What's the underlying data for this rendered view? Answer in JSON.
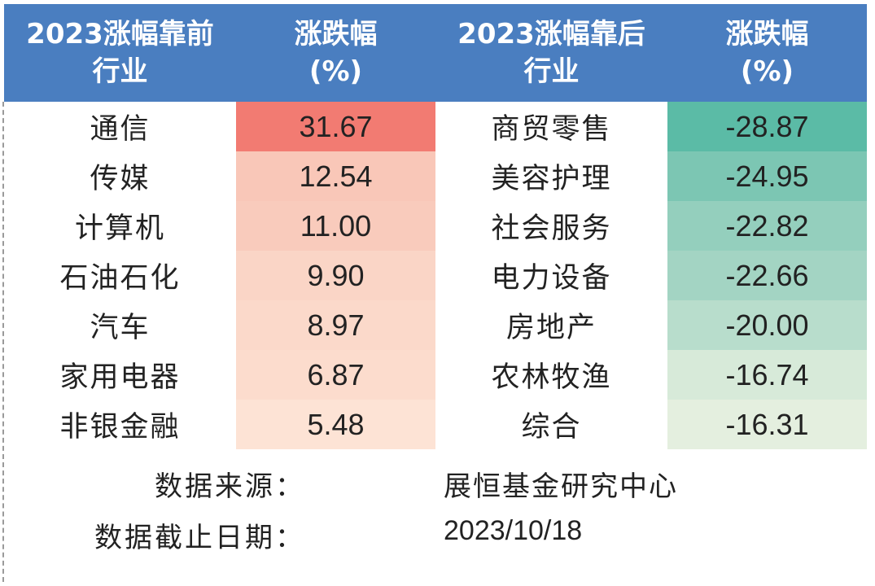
{
  "table": {
    "headers": {
      "top_industry": [
        "2023涨幅靠前",
        "行业"
      ],
      "top_change": [
        "涨跌幅",
        "(%)"
      ],
      "bottom_industry": [
        "2023涨幅靠后",
        "行业"
      ],
      "bottom_change": [
        "涨跌幅",
        "(%)"
      ]
    },
    "rows": [
      {
        "top_name": "通信",
        "top_value": "31.67",
        "bottom_name": "商贸零售",
        "bottom_value": "-28.87"
      },
      {
        "top_name": "传媒",
        "top_value": "12.54",
        "bottom_name": "美容护理",
        "bottom_value": "-24.95"
      },
      {
        "top_name": "计算机",
        "top_value": "11.00",
        "bottom_name": "社会服务",
        "bottom_value": "-22.82"
      },
      {
        "top_name": "石油石化",
        "top_value": "9.90",
        "bottom_name": "电力设备",
        "bottom_value": "-22.66"
      },
      {
        "top_name": "汽车",
        "top_value": "8.97",
        "bottom_name": "房地产",
        "bottom_value": "-20.00"
      },
      {
        "top_name": "家用电器",
        "top_value": "6.87",
        "bottom_name": "农林牧渔",
        "bottom_value": "-16.74"
      },
      {
        "top_name": "非银金融",
        "top_value": "5.48",
        "bottom_name": "综合",
        "bottom_value": "-16.31"
      }
    ],
    "top_value_colors": [
      "#f27b72",
      "#f9c7b8",
      "#f9cbbc",
      "#fad5c6",
      "#fbd9ca",
      "#fcdccd",
      "#fde3d5"
    ],
    "bottom_value_colors": [
      "#5bbba6",
      "#7cc6b3",
      "#94cfbd",
      "#a3d4c3",
      "#b8ddcc",
      "#d7ead9",
      "#e4efdf"
    ]
  },
  "footer": {
    "source_label": "数据来源：",
    "source_value": "展恒基金研究中心",
    "date_label": "数据截止日期：",
    "date_value": "2023/10/18"
  }
}
